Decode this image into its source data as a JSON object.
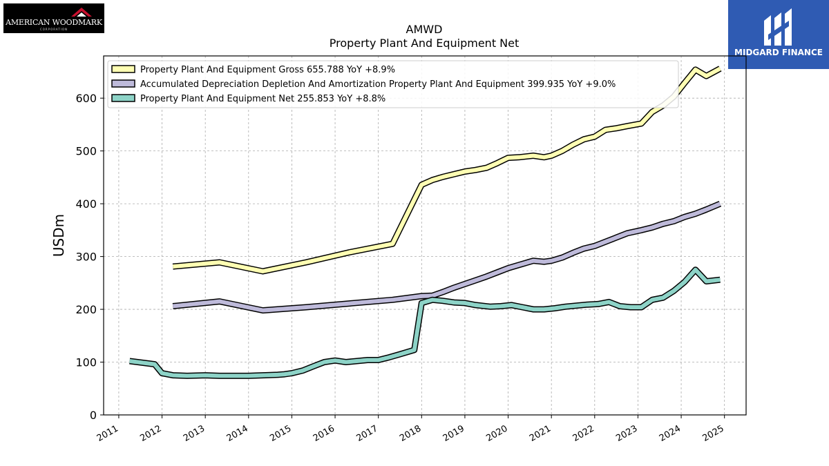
{
  "logos": {
    "left_name": "AMERICAN WOODMARK",
    "left_sub": "CORPORATION",
    "right_name": "MIDGARD FINANCE"
  },
  "chart_data": {
    "type": "line",
    "title": "AMWD",
    "subtitle": "Property Plant And Equipment Net",
    "ylabel": "USDm",
    "xlabel": "",
    "xlim": [
      2010.65,
      2025.5
    ],
    "ylim": [
      0,
      680
    ],
    "yticks": [
      0,
      100,
      200,
      300,
      400,
      500,
      600
    ],
    "xticks": [
      2011,
      2012,
      2013,
      2014,
      2015,
      2016,
      2017,
      2018,
      2019,
      2020,
      2021,
      2022,
      2023,
      2024,
      2025
    ],
    "grid": true,
    "legend_position": "top-left",
    "series": [
      {
        "name": "Property Plant And Equipment Gross",
        "legend": "Property Plant And Equipment Gross  655.788 YoY +8.9%",
        "color": "#ffffb3",
        "x": [
          2012.25,
          2013.33,
          2014.33,
          2015.33,
          2016.33,
          2017.33,
          2018.0,
          2018.25,
          2018.5,
          2018.75,
          2019.0,
          2019.25,
          2019.5,
          2019.75,
          2020.0,
          2020.25,
          2020.58,
          2020.83,
          2021.0,
          2021.25,
          2021.5,
          2021.75,
          2022.0,
          2022.25,
          2022.5,
          2022.75,
          2023.08,
          2023.33,
          2023.58,
          2023.83,
          2024.08,
          2024.33,
          2024.58,
          2024.9
        ],
        "y": [
          281,
          289,
          272,
          289,
          308,
          324,
          436,
          445,
          451,
          456,
          461,
          464,
          468,
          477,
          487,
          488,
          491,
          488,
          491,
          500,
          512,
          522,
          527,
          540,
          543,
          547,
          552,
          574,
          586,
          603,
          629,
          654,
          642,
          656
        ]
      },
      {
        "name": "Accumulated Depreciation Depletion And Amortization Property Plant And Equipment",
        "legend": "Accumulated Depreciation Depletion And Amortization Property Plant And Equipment  399.935 YoY +9.0%",
        "color": "#bebada",
        "x": [
          2012.25,
          2013.33,
          2014.33,
          2015.33,
          2016.33,
          2017.33,
          2018.0,
          2018.25,
          2018.5,
          2018.75,
          2019.0,
          2019.25,
          2019.5,
          2019.75,
          2020.0,
          2020.25,
          2020.58,
          2020.83,
          2021.0,
          2021.25,
          2021.5,
          2021.75,
          2022.0,
          2022.25,
          2022.5,
          2022.75,
          2023.08,
          2023.33,
          2023.58,
          2023.83,
          2024.08,
          2024.33,
          2024.58,
          2024.9
        ],
        "y": [
          206,
          215,
          198,
          204,
          211,
          218,
          225,
          226,
          233,
          241,
          248,
          255,
          262,
          270,
          278,
          284,
          292,
          290,
          292,
          298,
          307,
          315,
          320,
          328,
          336,
          344,
          350,
          355,
          362,
          367,
          375,
          381,
          389,
          400
        ]
      },
      {
        "name": "Property Plant And Equipment Net",
        "legend": "Property Plant And Equipment Net  255.853 YoY +8.8%",
        "color": "#8dd3c7",
        "x": [
          2011.25,
          2011.83,
          2012.0,
          2012.25,
          2012.58,
          2013.0,
          2013.33,
          2013.67,
          2014.0,
          2014.33,
          2014.67,
          2014.83,
          2015.0,
          2015.25,
          2015.5,
          2015.75,
          2016.0,
          2016.25,
          2016.5,
          2016.75,
          2017.0,
          2017.25,
          2017.5,
          2017.83,
          2018.0,
          2018.25,
          2018.5,
          2018.75,
          2019.0,
          2019.25,
          2019.58,
          2019.83,
          2020.08,
          2020.33,
          2020.58,
          2020.83,
          2021.08,
          2021.33,
          2021.58,
          2021.83,
          2022.08,
          2022.33,
          2022.58,
          2022.83,
          2023.08,
          2023.33,
          2023.58,
          2023.83,
          2024.08,
          2024.33,
          2024.58,
          2024.9
        ],
        "y": [
          102,
          96,
          79,
          75,
          74,
          75,
          74,
          74,
          74,
          75,
          76,
          77,
          79,
          84,
          92,
          100,
          103,
          100,
          102,
          104,
          104,
          109,
          115,
          123,
          212,
          218,
          216,
          213,
          212,
          208,
          205,
          206,
          208,
          204,
          200,
          200,
          202,
          205,
          207,
          209,
          210,
          214,
          206,
          204,
          204,
          218,
          222,
          235,
          252,
          275,
          253,
          256
        ]
      }
    ]
  }
}
